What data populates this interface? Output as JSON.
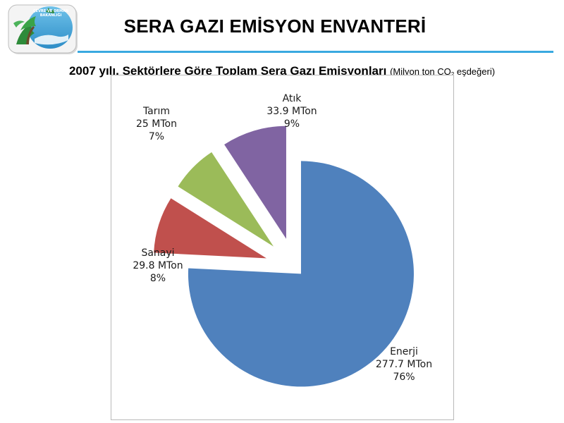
{
  "header": {
    "title": "SERA GAZI EMİSYON ENVANTERİ",
    "logo_text": "ÇEVRE VE ORMAN BAKANLIĞI",
    "subtitle_main": "2007 yılı, Sektörlere Göre Toplam Sera Gazı Emisyonları",
    "subtitle_unit_prefix": "(Milyon ton CO",
    "subtitle_unit_sub": "2",
    "subtitle_unit_suffix": " eşdeğeri)"
  },
  "chart_data": {
    "type": "pie",
    "exploded": true,
    "slices": [
      {
        "name": "Enerji",
        "value_label": "277.7 MTon",
        "value": 277.7,
        "percent_label": "76%",
        "color": "#4f81bd"
      },
      {
        "name": "Sanayi",
        "value_label": "29.8 MTon",
        "value": 29.8,
        "percent_label": "8%",
        "color": "#c0504d"
      },
      {
        "name": "Tarım",
        "value_label": "25 MTon",
        "value": 25,
        "percent_label": "7%",
        "color": "#9bbb59"
      },
      {
        "name": "Atık",
        "value_label": "33.9 MTon",
        "value": 33.9,
        "percent_label": "9%",
        "color": "#8064a2"
      }
    ]
  }
}
